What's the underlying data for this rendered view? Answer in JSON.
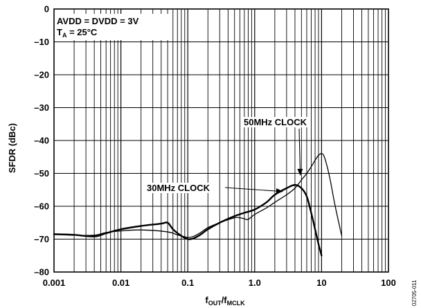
{
  "chart_data": {
    "type": "line",
    "xscale": "log",
    "xlim": [
      0.001,
      100
    ],
    "ylim": [
      -80,
      0
    ],
    "grid": true,
    "xlabel": {
      "main": "f",
      "sub1": "OUT",
      "slash": "/f",
      "sub2": "MCLK"
    },
    "ylabel": "SFDR (dBc)",
    "x_ticks": [
      {
        "value": 0.001,
        "label": "0.001"
      },
      {
        "value": 0.01,
        "label": "0.01"
      },
      {
        "value": 0.1,
        "label": "0.1"
      },
      {
        "value": 1,
        "label": "1.0"
      },
      {
        "value": 10,
        "label": "10"
      },
      {
        "value": 100,
        "label": "100"
      }
    ],
    "y_ticks": [
      {
        "value": 0,
        "label": "0"
      },
      {
        "value": -10,
        "label": "–10"
      },
      {
        "value": -20,
        "label": "–20"
      },
      {
        "value": -30,
        "label": "–30"
      },
      {
        "value": -40,
        "label": "–40"
      },
      {
        "value": -50,
        "label": "–50"
      },
      {
        "value": -60,
        "label": "–60"
      },
      {
        "value": -70,
        "label": "–70"
      },
      {
        "value": -80,
        "label": "–80"
      }
    ],
    "conditions": {
      "line1": "AVDD = DVDD = 3V",
      "line2_main": "T",
      "line2_sub": "A",
      "line2_rest": " = 25°C"
    },
    "series": [
      {
        "name": "30MHz CLOCK",
        "stroke": "#000000",
        "x": [
          0.001,
          0.002,
          0.004,
          0.006,
          0.01,
          0.02,
          0.04,
          0.05,
          0.06,
          0.08,
          0.1,
          0.12,
          0.15,
          0.2,
          0.3,
          0.5,
          0.7,
          1.0,
          1.5,
          2.0,
          3.0,
          4.0,
          5.0,
          6.0,
          7.0,
          8.0,
          9.0,
          10.0
        ],
        "values": [
          -68.5,
          -68.7,
          -69.2,
          -68.2,
          -67.0,
          -66.0,
          -65.3,
          -65.0,
          -67.0,
          -69.0,
          -70.0,
          -69.8,
          -68.8,
          -67.0,
          -65.0,
          -63.0,
          -62.0,
          -61.0,
          -58.8,
          -56.5,
          -54.5,
          -53.5,
          -54.5,
          -57.0,
          -62.0,
          -67.0,
          -71.5,
          -75.0
        ],
        "stroke_width": 2.4
      },
      {
        "name": "50MHz CLOCK",
        "stroke": "#000000",
        "x": [
          0.001,
          0.002,
          0.004,
          0.006,
          0.01,
          0.02,
          0.05,
          0.07,
          0.09,
          0.1,
          0.12,
          0.15,
          0.2,
          0.3,
          0.5,
          0.6,
          0.7,
          0.8,
          1.0,
          1.5,
          2.0,
          3.0,
          4.0,
          5.0,
          6.0,
          7.0,
          8.0,
          9.0,
          10.0,
          11.0,
          13.0,
          16.0,
          20.0
        ],
        "values": [
          -68.5,
          -68.8,
          -68.8,
          -68.0,
          -67.5,
          -67.2,
          -67.8,
          -68.7,
          -69.3,
          -69.5,
          -69.2,
          -68.2,
          -66.5,
          -65.0,
          -63.5,
          -63.5,
          -63.8,
          -64.0,
          -62.5,
          -60.5,
          -58.8,
          -56.5,
          -54.5,
          -52.0,
          -50.0,
          -48.0,
          -46.0,
          -44.5,
          -44.0,
          -45.0,
          -50.5,
          -60.0,
          -69.0
        ],
        "stroke_width": 1.3
      }
    ],
    "annotations": [
      {
        "text": "50MHz CLOCK",
        "arrow_to": [
          4.8,
          -50.5
        ]
      },
      {
        "text": "30MHz CLOCK",
        "arrow_to": [
          2.6,
          -55.5
        ]
      }
    ]
  },
  "figure_code": "02705-011"
}
